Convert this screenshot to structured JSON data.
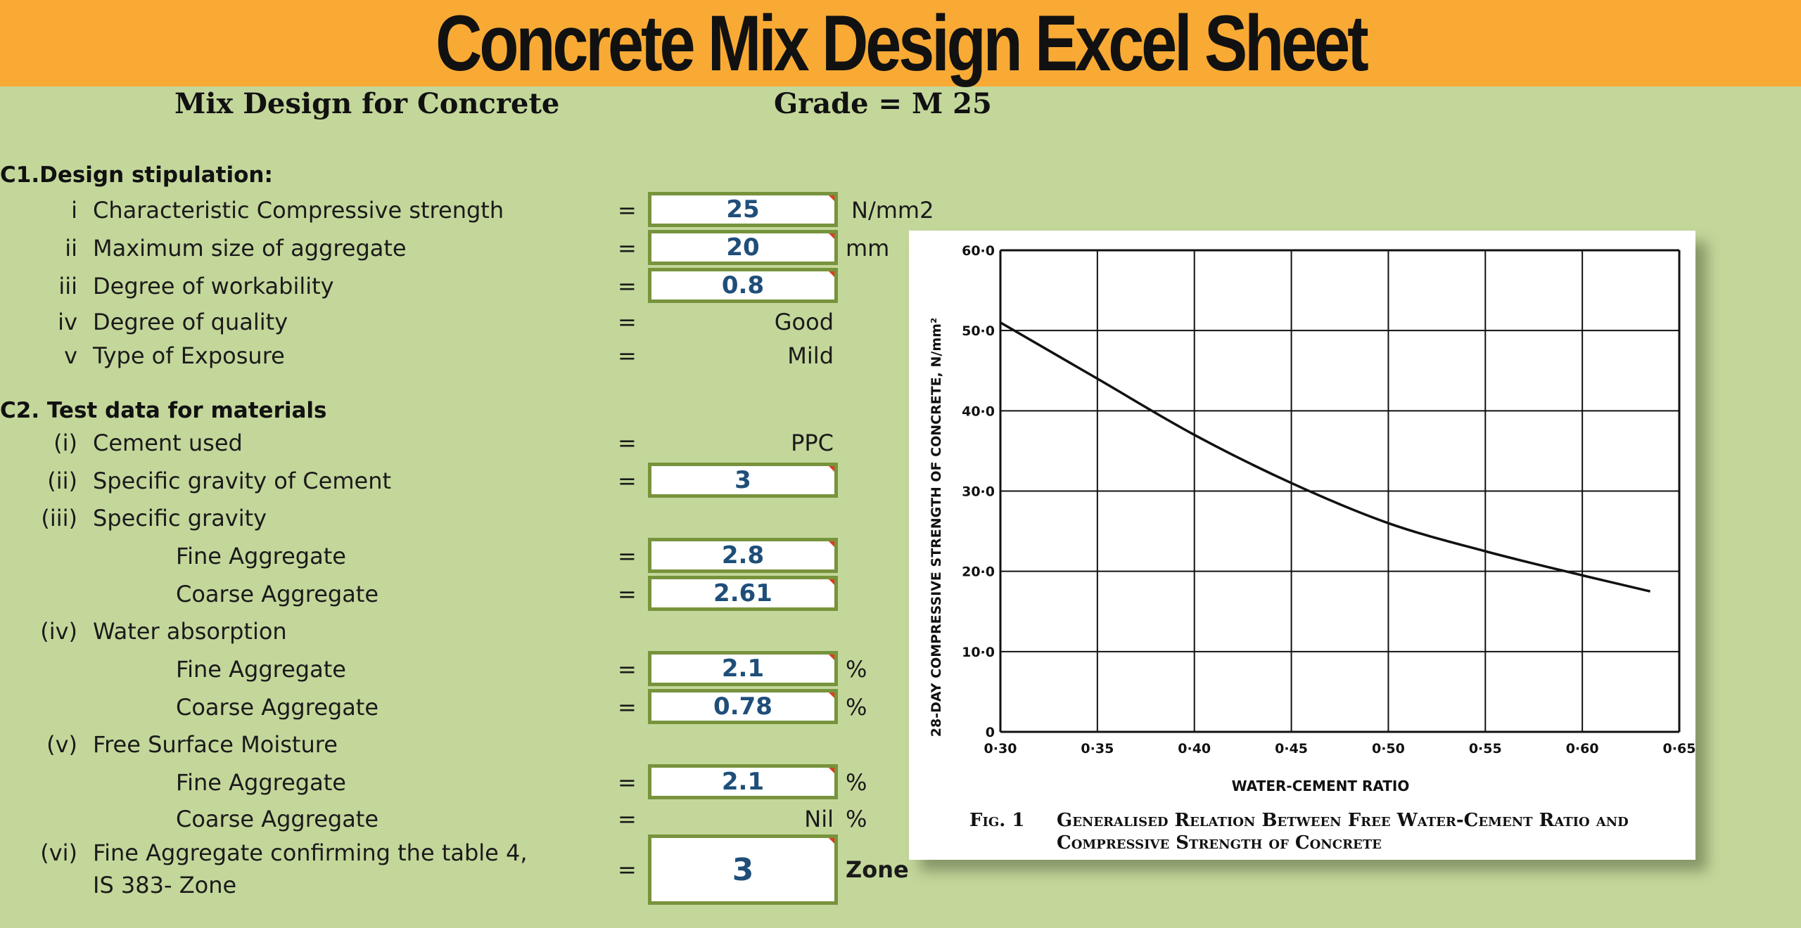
{
  "banner": {
    "title": "Concrete Mix Design Excel Sheet"
  },
  "header": {
    "title": "Mix Design for Concrete",
    "grade": "Grade = M 25"
  },
  "section1": {
    "title": "C1.Design stipulation:",
    "rows": [
      {
        "num": "i",
        "label": "Characteristic Compressive strength",
        "eq": "=",
        "value": "25",
        "unit": "N/mm2"
      },
      {
        "num": "ii",
        "label": "Maximum size of aggregate",
        "eq": "=",
        "value": "20",
        "unit": "mm"
      },
      {
        "num": "iii",
        "label": "Degree of workability",
        "eq": "=",
        "value": "0.8",
        "unit": ""
      },
      {
        "num": "iv",
        "label": "Degree of quality",
        "eq": "=",
        "value": "Good",
        "unit": ""
      },
      {
        "num": "v",
        "label": "Type of Exposure",
        "eq": "=",
        "value": "Mild",
        "unit": ""
      }
    ]
  },
  "section2": {
    "title": "C2. Test data for materials",
    "rows": [
      {
        "num": "(i)",
        "label": "Cement used",
        "eq": "=",
        "value": "PPC",
        "unit": ""
      },
      {
        "num": "(ii)",
        "label": "Specific gravity of Cement",
        "eq": "=",
        "value": "3",
        "unit": ""
      },
      {
        "num": "(iii)",
        "label": "Specific gravity",
        "eq": "",
        "value": "",
        "unit": ""
      },
      {
        "num": "",
        "label": "Fine Aggregate",
        "eq": "=",
        "value": "2.8",
        "unit": ""
      },
      {
        "num": "",
        "label": "Coarse Aggregate",
        "eq": "=",
        "value": "2.61",
        "unit": ""
      },
      {
        "num": "(iv)",
        "label": "Water absorption",
        "eq": "",
        "value": "",
        "unit": ""
      },
      {
        "num": "",
        "label": "Fine Aggregate",
        "eq": "=",
        "value": "2.1",
        "unit": "%"
      },
      {
        "num": "",
        "label": "Coarse Aggregate",
        "eq": "=",
        "value": "0.78",
        "unit": "%"
      },
      {
        "num": "(v)",
        "label": "Free Surface Moisture",
        "eq": "",
        "value": "",
        "unit": ""
      },
      {
        "num": "",
        "label": "Fine Aggregate",
        "eq": "=",
        "value": "2.1",
        "unit": "%"
      },
      {
        "num": "",
        "label": "Coarse Aggregate",
        "eq": "=",
        "value": "Nil",
        "unit": "%"
      },
      {
        "num": "(vi)",
        "label": "Fine Aggregate confirming the table 4,",
        "label2": "IS 383- Zone",
        "eq": "=",
        "value": "3",
        "unit": "Zone"
      }
    ]
  },
  "chart_data": {
    "type": "line",
    "xlabel": "WATER-CEMENT RATIO",
    "ylabel": "28-DAY COMPRESSIVE STRENGTH OF CONCRETE, N/mm²",
    "xlim": [
      0.3,
      0.65
    ],
    "ylim": [
      0,
      60
    ],
    "x_ticks": [
      "0·30",
      "0·35",
      "0·40",
      "0·45",
      "0·50",
      "0·55",
      "0·60",
      "0·65"
    ],
    "y_ticks": [
      "0",
      "10·0",
      "20·0",
      "30·0",
      "40·0",
      "50·0",
      "60·0"
    ],
    "grid": true,
    "series": [
      {
        "x": [
          0.3,
          0.35,
          0.4,
          0.45,
          0.5,
          0.55,
          0.6,
          0.635
        ],
        "y": [
          51.0,
          44.0,
          37.0,
          31.0,
          26.0,
          22.5,
          19.5,
          17.5
        ]
      }
    ],
    "caption_num": "Fig. 1",
    "caption": "Generalised Relation Between Free Water-Cement Ratio and Compressive Strength of Concrete"
  }
}
